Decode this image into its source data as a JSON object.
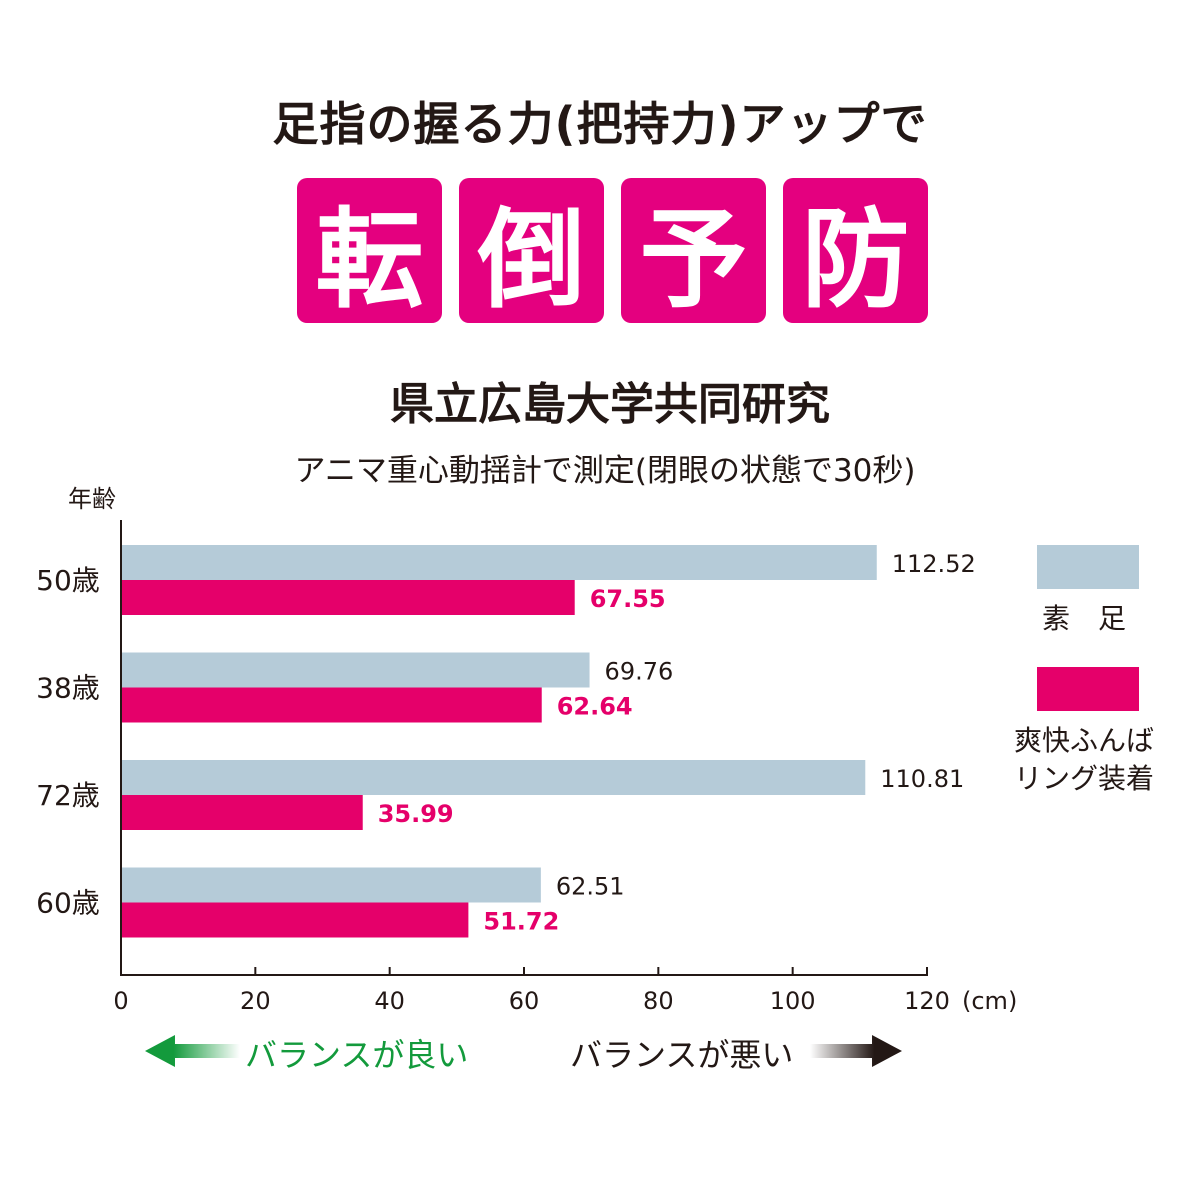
{
  "header": {
    "heading": "足指の握る力(把持力)アップで",
    "keywords": [
      "転",
      "倒",
      "予",
      "防"
    ],
    "study": "県立広島大学共同研究",
    "method": "アニマ重心動揺計で測定(閉眼の状態で30秒)"
  },
  "colors": {
    "barefoot": "#b5cbd8",
    "ring": "#e5006a",
    "accent": "#e4007f",
    "good": "#139a3c"
  },
  "chart_data": {
    "type": "bar",
    "orientation": "horizontal",
    "ylabel": "年齢",
    "xlabel": "(cm)",
    "categories": [
      "50歳",
      "38歳",
      "72歳",
      "60歳"
    ],
    "series": [
      {
        "name": "素　足",
        "values": [
          112.52,
          69.76,
          110.81,
          62.51
        ]
      },
      {
        "name": "爽快ふんばリング装着",
        "values": [
          67.55,
          62.64,
          35.99,
          51.72
        ]
      }
    ],
    "value_labels": [
      [
        "112.52",
        "69.76",
        "110.81",
        "62.51"
      ],
      [
        "67.55",
        "62.64",
        "35.99",
        "51.72"
      ]
    ],
    "xlim": [
      0,
      120
    ],
    "xticks": [
      0,
      20,
      40,
      60,
      80,
      100,
      120
    ],
    "xtick_labels": [
      "0",
      "20",
      "40",
      "60",
      "80",
      "100",
      "120"
    ],
    "legend": {
      "position": "right",
      "labels": [
        "素　足",
        "爽快ふんば",
        "リング装着"
      ]
    }
  },
  "footer": {
    "good": "バランスが良い",
    "bad": "バランスが悪い"
  }
}
